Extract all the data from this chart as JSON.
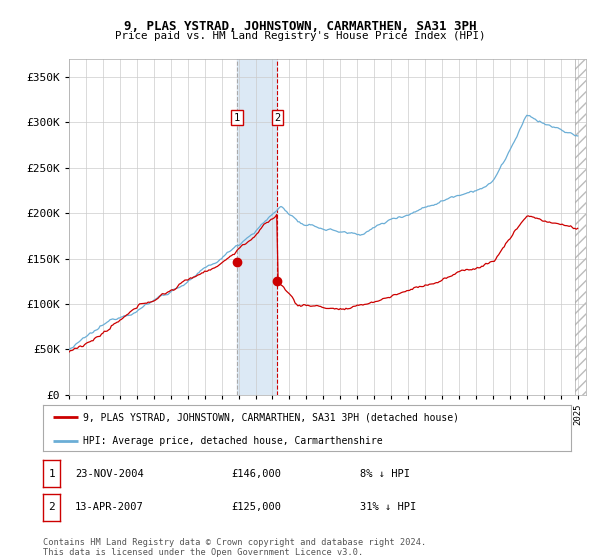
{
  "title1": "9, PLAS YSTRAD, JOHNSTOWN, CARMARTHEN, SA31 3PH",
  "title2": "Price paid vs. HM Land Registry's House Price Index (HPI)",
  "ylabel_ticks": [
    "£0",
    "£50K",
    "£100K",
    "£150K",
    "£200K",
    "£250K",
    "£300K",
    "£350K"
  ],
  "ylabel_values": [
    0,
    50000,
    100000,
    150000,
    200000,
    250000,
    300000,
    350000
  ],
  "ylim": [
    0,
    370000
  ],
  "xlim_start": 1995.0,
  "xlim_end": 2025.5,
  "purchase1_date": 2004.9,
  "purchase1_price": 146000,
  "purchase2_date": 2007.28,
  "purchase2_price": 125000,
  "legend_line1": "9, PLAS YSTRAD, JOHNSTOWN, CARMARTHEN, SA31 3PH (detached house)",
  "legend_line2": "HPI: Average price, detached house, Carmarthenshire",
  "table_row1": [
    "1",
    "23-NOV-2004",
    "£146,000",
    "8% ↓ HPI"
  ],
  "table_row2": [
    "2",
    "13-APR-2007",
    "£125,000",
    "31% ↓ HPI"
  ],
  "footer": "Contains HM Land Registry data © Crown copyright and database right 2024.\nThis data is licensed under the Open Government Licence v3.0.",
  "hpi_color": "#6baed6",
  "price_color": "#cc0000",
  "shading_color": "#dce9f5",
  "background_color": "#ffffff",
  "grid_color": "#cccccc",
  "hatch_color": "#cccccc",
  "hatch_start": 2024.83
}
